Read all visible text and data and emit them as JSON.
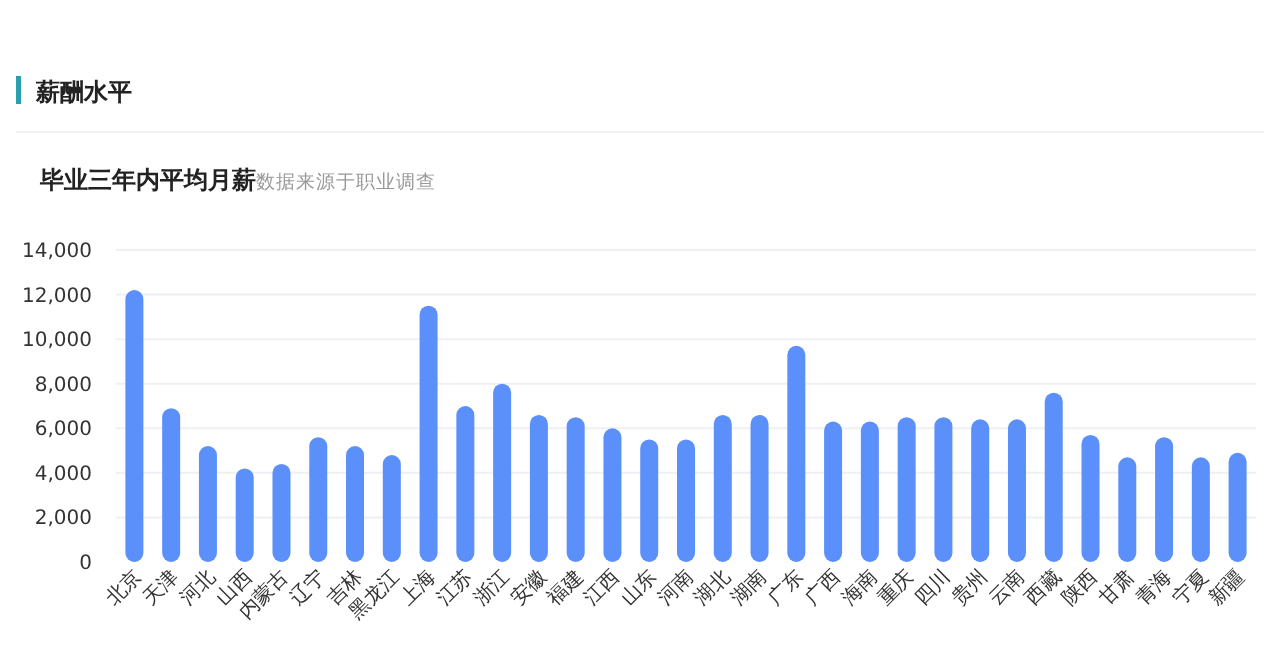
{
  "chart_data": {
    "type": "bar",
    "title": "薪酬水平",
    "subtitle": "毕业三年内平均月薪",
    "annotations": [
      "数据来源于职业调查"
    ],
    "categories": [
      "北京",
      "天津",
      "河北",
      "山西",
      "内蒙古",
      "辽宁",
      "吉林",
      "黑龙江",
      "上海",
      "江苏",
      "浙江",
      "安徽",
      "福建",
      "江西",
      "山东",
      "河南",
      "湖北",
      "湖南",
      "广东",
      "广西",
      "海南",
      "重庆",
      "四川",
      "贵州",
      "云南",
      "西藏",
      "陕西",
      "甘肃",
      "青海",
      "宁夏",
      "新疆"
    ],
    "values": [
      12200,
      6900,
      5200,
      4200,
      4400,
      5600,
      5200,
      4800,
      11500,
      7000,
      8000,
      6600,
      6500,
      6000,
      5500,
      5500,
      6600,
      6600,
      9700,
      6300,
      6300,
      6500,
      6500,
      6400,
      6400,
      7600,
      5700,
      4700,
      5600,
      4700,
      4900
    ],
    "color": "#5b8ff9",
    "ylim": [
      0,
      14000
    ],
    "yticks": [
      {
        "value": 0,
        "label": "0"
      },
      {
        "value": 2000,
        "label": "2,000"
      },
      {
        "value": 4000,
        "label": "4,000"
      },
      {
        "value": 6000,
        "label": "6,000"
      },
      {
        "value": 8000,
        "label": "8,000"
      },
      {
        "value": 10000,
        "label": "10,000"
      },
      {
        "value": 12000,
        "label": "12,000"
      },
      {
        "value": 14000,
        "label": "14,000"
      }
    ],
    "grid": "y"
  }
}
